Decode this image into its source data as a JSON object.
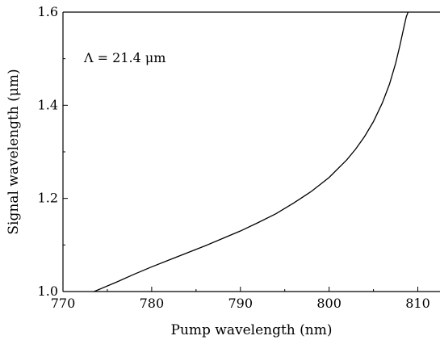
{
  "chart_data": {
    "type": "line",
    "xlabel": "Pump wavelength (nm)",
    "ylabel": "Signal wavelength (μm)",
    "xlim": [
      770,
      812.5
    ],
    "ylim": [
      1.0,
      1.6
    ],
    "xticks": [
      770,
      780,
      790,
      800,
      810
    ],
    "yticks": [
      1.0,
      1.2,
      1.4,
      1.6
    ],
    "xtick_labels": [
      "770",
      "780",
      "790",
      "800",
      "810"
    ],
    "ytick_labels": [
      "1.0",
      "1.2",
      "1.4",
      "1.6"
    ],
    "annotation": "Λ = 21.4 μm",
    "grid": false,
    "series": [
      {
        "x": [
          773.5,
          776,
          778,
          780,
          782,
          784,
          786,
          788,
          790,
          792,
          794,
          796,
          798,
          800,
          802,
          803,
          804,
          805,
          806,
          806.8,
          807.5,
          808,
          808.4,
          808.7,
          808.9
        ],
        "y": [
          1.0,
          1.02,
          1.037,
          1.053,
          1.068,
          1.083,
          1.098,
          1.114,
          1.13,
          1.148,
          1.167,
          1.19,
          1.215,
          1.245,
          1.283,
          1.306,
          1.333,
          1.365,
          1.405,
          1.445,
          1.49,
          1.53,
          1.565,
          1.59,
          1.6
        ]
      }
    ]
  }
}
